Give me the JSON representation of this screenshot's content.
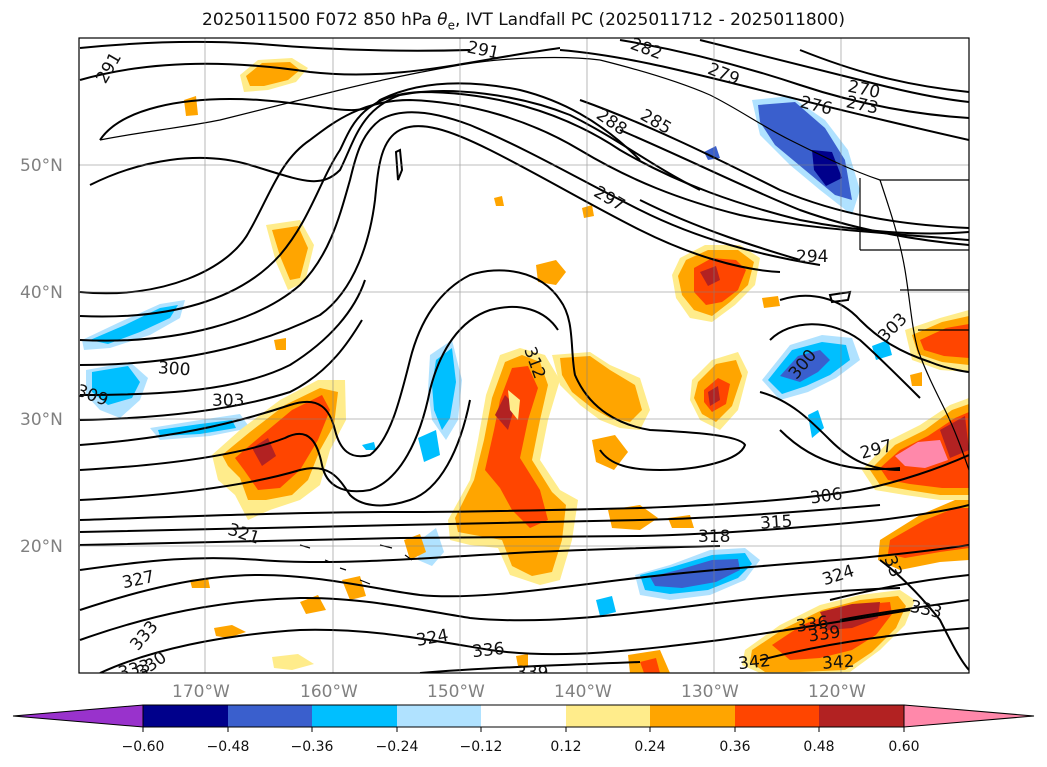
{
  "title": {
    "prefix": "2025011500 F072 850 hPa ",
    "theta": "θ",
    "sub": "e",
    "suffix": ", IVT Landfall PC (2025011712 - 2025011800)"
  },
  "lat_labels": [
    "50°N",
    "40°N",
    "30°N",
    "20°N"
  ],
  "lon_labels": [
    "170°W",
    "160°W",
    "150°W",
    "140°W",
    "130°W",
    "120°W"
  ],
  "colorbar": {
    "ticks": [
      "−0.60",
      "−0.48",
      "−0.36",
      "−0.24",
      "−0.12",
      "0.12",
      "0.24",
      "0.36",
      "0.48",
      "0.60"
    ],
    "colors": [
      "#9932cc",
      "#00008b",
      "#3a5fcd",
      "#00bfff",
      "#b0e2ff",
      "#ffffff",
      "#ffec8b",
      "#ffa500",
      "#ff4500",
      "#b22222",
      "#ff88aa"
    ]
  },
  "contour_labels": [
    {
      "text": "291"
    },
    {
      "text": "291"
    },
    {
      "text": "282"
    },
    {
      "text": "279"
    },
    {
      "text": "270"
    },
    {
      "text": "273"
    },
    {
      "text": "276"
    },
    {
      "text": "288"
    },
    {
      "text": "285"
    },
    {
      "text": "297"
    },
    {
      "text": "294"
    },
    {
      "text": "303"
    },
    {
      "text": "300"
    },
    {
      "text": "300"
    },
    {
      "text": "309"
    },
    {
      "text": "303"
    },
    {
      "text": "312"
    },
    {
      "text": "297"
    },
    {
      "text": "306"
    },
    {
      "text": "315"
    },
    {
      "text": "318"
    },
    {
      "text": "321"
    },
    {
      "text": "327"
    },
    {
      "text": "324"
    },
    {
      "text": "324"
    },
    {
      "text": "333"
    },
    {
      "text": "336"
    },
    {
      "text": "330"
    },
    {
      "text": "339"
    },
    {
      "text": "333"
    },
    {
      "text": "336"
    },
    {
      "text": "339"
    },
    {
      "text": "342"
    },
    {
      "text": "342"
    },
    {
      "text": "33"
    },
    {
      "text": "333"
    }
  ]
}
